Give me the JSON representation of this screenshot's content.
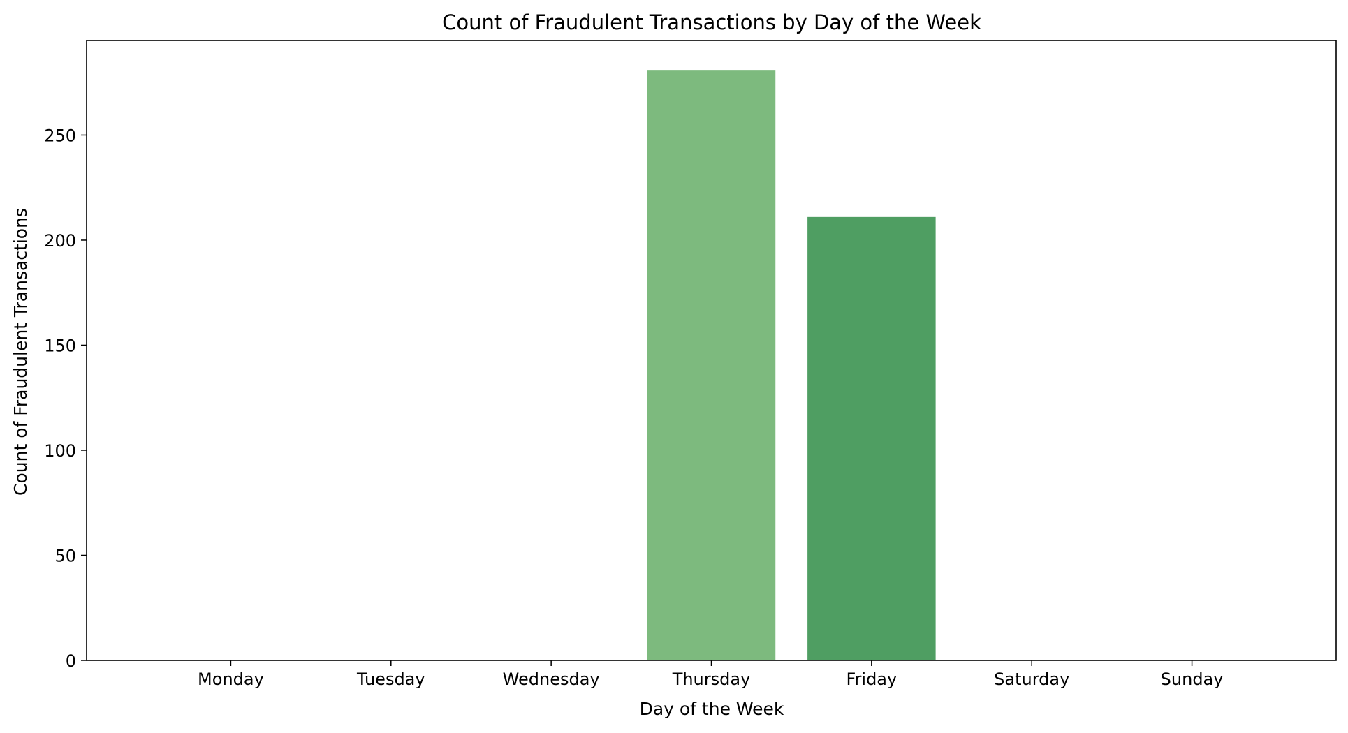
{
  "chart_data": {
    "type": "bar",
    "title": "Count of Fraudulent Transactions by Day of the Week",
    "xlabel": "Day of the Week",
    "ylabel": "Count of Fraudulent Transactions",
    "categories": [
      "Monday",
      "Tuesday",
      "Wednesday",
      "Thursday",
      "Friday",
      "Saturday",
      "Sunday"
    ],
    "values": [
      0,
      0,
      0,
      281,
      211,
      0,
      0
    ],
    "bar_colors": [
      "#d8edd3",
      "#c1e2b8",
      "#a6d49c",
      "#7dba7e",
      "#4f9e62",
      "#2e7d47",
      "#176433"
    ],
    "ylim": [
      0,
      295
    ],
    "yticks": [
      0,
      50,
      100,
      150,
      200,
      250
    ],
    "grid": false,
    "legend": "none"
  }
}
